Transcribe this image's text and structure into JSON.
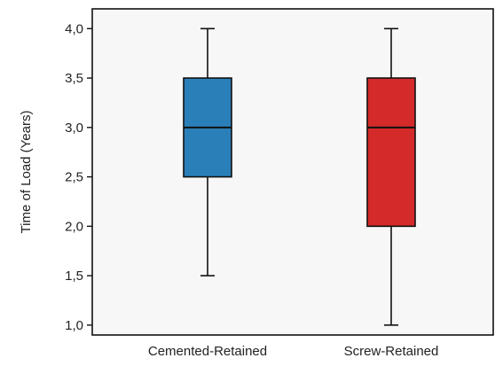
{
  "chart_data": {
    "type": "box",
    "ylabel": "Time of Load (Years)",
    "xlabel": "",
    "title": "",
    "ylim": [
      0.9,
      4.2
    ],
    "yticks": [
      "1,0",
      "1,5",
      "2,0",
      "2,5",
      "3,0",
      "3,5",
      "4,0"
    ],
    "ytick_values": [
      1.0,
      1.5,
      2.0,
      2.5,
      3.0,
      3.5,
      4.0
    ],
    "grid": false,
    "categories": [
      "Cemented-Retained",
      "Screw-Retained"
    ],
    "boxes": [
      {
        "category": "Cemented-Retained",
        "min": 1.5,
        "q1": 2.5,
        "median": 3.0,
        "q3": 3.5,
        "max": 4.0,
        "color": "#2b7fb8"
      },
      {
        "category": "Screw-Retained",
        "min": 1.0,
        "q1": 2.0,
        "median": 3.0,
        "q3": 3.5,
        "max": 4.0,
        "color": "#d42a2a"
      }
    ]
  },
  "colors": {
    "plot_background": "#f7f7f7",
    "axis": "#111111"
  }
}
